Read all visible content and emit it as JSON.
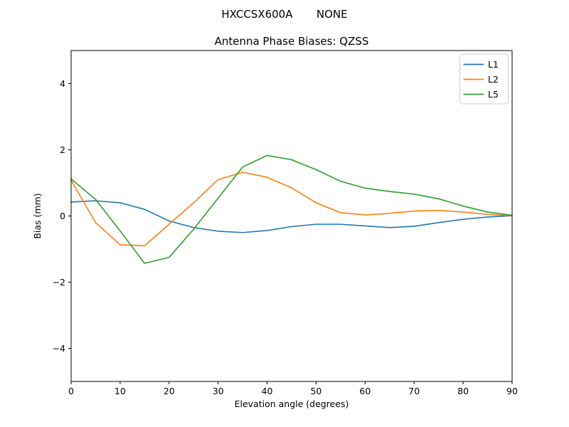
{
  "figure": {
    "suptitle": "HXCCSX600A       NONE",
    "axes_title": "Antenna Phase Biases: QZSS"
  },
  "chart_data": {
    "type": "line",
    "suptitle": "HXCCSX600A       NONE",
    "title": "Antenna Phase Biases: QZSS",
    "xlabel": "Elevation angle (degrees)",
    "ylabel": "Bias (mm)",
    "xlim": [
      0,
      90
    ],
    "ylim": [
      -5,
      5
    ],
    "xticks": [
      0,
      10,
      20,
      30,
      40,
      50,
      60,
      70,
      80,
      90
    ],
    "yticks": [
      -4,
      -2,
      0,
      2,
      4
    ],
    "grid": false,
    "legend": {
      "position": "upper right",
      "entries": [
        "L1",
        "L2",
        "L5"
      ],
      "edge_color": "#cccccc",
      "face_color": "#ffffff"
    },
    "x": [
      0,
      5,
      10,
      15,
      20,
      25,
      30,
      35,
      40,
      45,
      50,
      55,
      60,
      65,
      70,
      75,
      80,
      85,
      90
    ],
    "series": [
      {
        "name": "L1",
        "color": "#1f77b4",
        "values": [
          0.42,
          0.46,
          0.4,
          0.2,
          -0.15,
          -0.35,
          -0.46,
          -0.5,
          -0.44,
          -0.32,
          -0.25,
          -0.25,
          -0.3,
          -0.35,
          -0.31,
          -0.2,
          -0.1,
          -0.03,
          0.01
        ]
      },
      {
        "name": "L2",
        "color": "#ff7f0e",
        "values": [
          1.08,
          -0.2,
          -0.87,
          -0.9,
          -0.25,
          0.4,
          1.1,
          1.32,
          1.17,
          0.85,
          0.4,
          0.1,
          0.03,
          0.08,
          0.15,
          0.17,
          0.12,
          0.05,
          0.01
        ]
      },
      {
        "name": "L5",
        "color": "#2ca02c",
        "values": [
          1.12,
          0.5,
          -0.45,
          -1.43,
          -1.25,
          -0.4,
          0.54,
          1.48,
          1.83,
          1.7,
          1.4,
          1.05,
          0.84,
          0.74,
          0.66,
          0.52,
          0.3,
          0.12,
          0.02
        ]
      }
    ],
    "axis_color": "#000000",
    "background_color": "#ffffff"
  }
}
